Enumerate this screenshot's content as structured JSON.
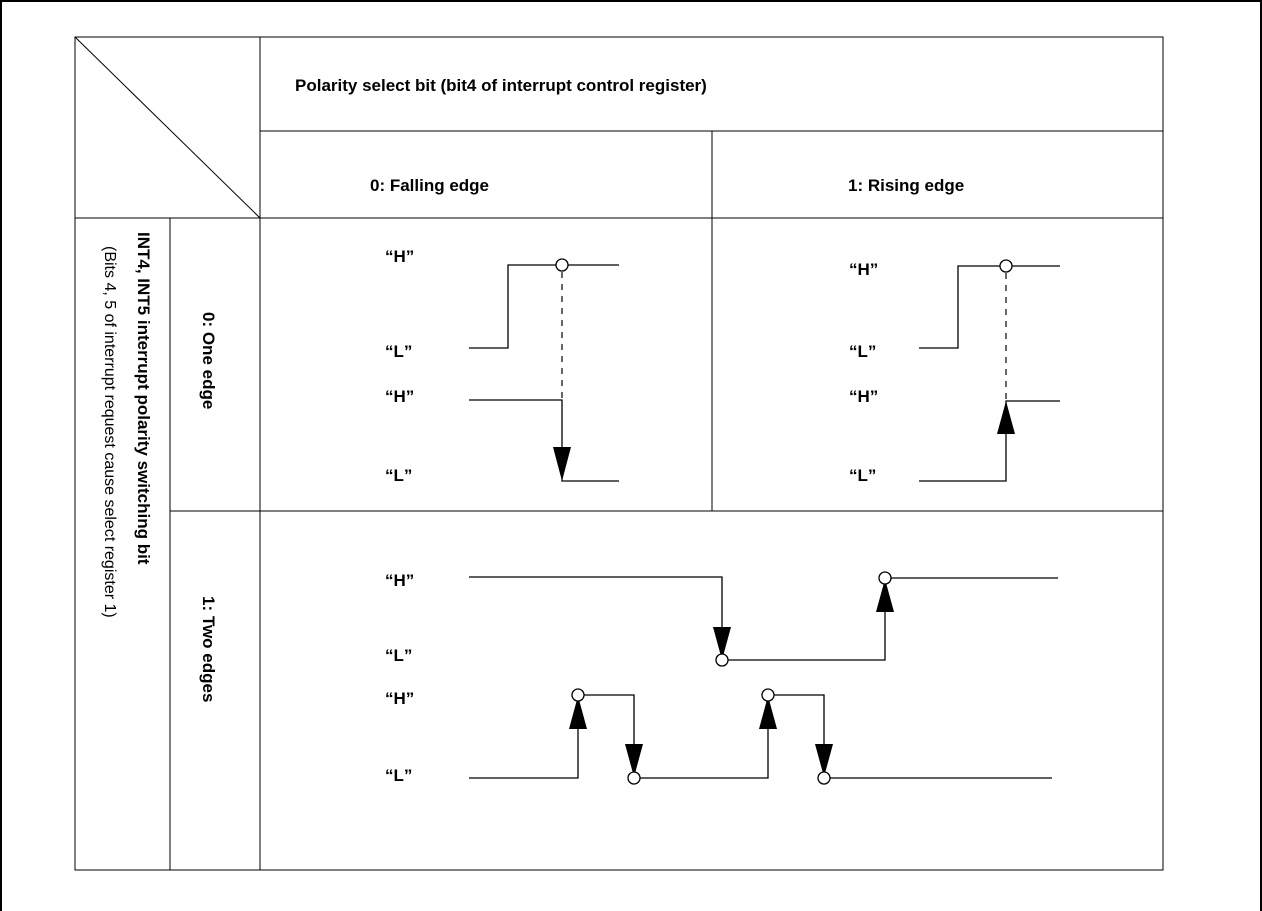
{
  "header": {
    "polarity_title": "Polarity select bit (bit4 of interrupt control register)",
    "col_falling": "0: Falling edge",
    "col_rising": "1: Rising edge"
  },
  "side": {
    "title": "INT4, INT5 interrupt polarity switching bit",
    "subtitle": "(Bits 4, 5 of interrupt request cause select register 1)",
    "row_one": "0: One edge",
    "row_two": "1: Two edges"
  },
  "levels": {
    "high": "“H”",
    "low": "“L”"
  }
}
